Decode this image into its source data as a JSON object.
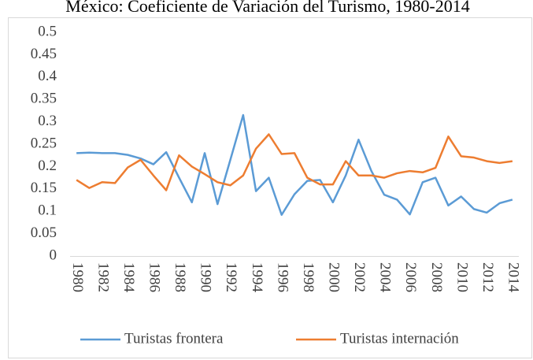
{
  "chart_data": {
    "type": "line",
    "title": "México: Coeficiente de Variación del Turismo, 1980-2014",
    "categories": [
      "1980",
      null,
      "1982",
      null,
      "1984",
      null,
      "1986",
      null,
      "1988",
      null,
      "1990",
      null,
      "1992",
      null,
      "1994",
      null,
      "1996",
      null,
      "1998",
      null,
      "2000",
      null,
      "2002",
      null,
      "2004",
      null,
      "2006",
      null,
      "2008",
      null,
      "2010",
      null,
      "2012",
      null,
      "2014"
    ],
    "series": [
      {
        "name": "Turistas frontera",
        "color": "#5b9bd5",
        "values": [
          0.23,
          0.231,
          0.23,
          0.23,
          0.226,
          0.218,
          0.205,
          0.232,
          0.175,
          0.12,
          0.23,
          0.116,
          0.215,
          0.315,
          0.145,
          0.175,
          0.092,
          0.138,
          0.168,
          0.17,
          0.12,
          0.18,
          0.26,
          0.19,
          0.137,
          0.126,
          0.093,
          0.165,
          0.175,
          0.113,
          0.133,
          0.105,
          0.097,
          0.118,
          0.126
        ]
      },
      {
        "name": "Turistas internación",
        "color": "#ed7d31",
        "values": [
          0.17,
          0.152,
          0.165,
          0.163,
          0.198,
          0.215,
          0.18,
          0.147,
          0.225,
          0.2,
          0.183,
          0.165,
          0.158,
          0.18,
          0.24,
          0.272,
          0.228,
          0.23,
          0.175,
          0.16,
          0.16,
          0.212,
          0.18,
          0.18,
          0.175,
          0.185,
          0.19,
          0.187,
          0.197,
          0.267,
          0.223,
          0.22,
          0.212,
          0.208,
          0.212
        ]
      }
    ],
    "ylim": [
      0,
      0.5
    ],
    "yticks": [
      0,
      0.05,
      0.1,
      0.15,
      0.2,
      0.25,
      0.3,
      0.35,
      0.4,
      0.45,
      0.5
    ],
    "grid": false,
    "legend": "bottom"
  }
}
